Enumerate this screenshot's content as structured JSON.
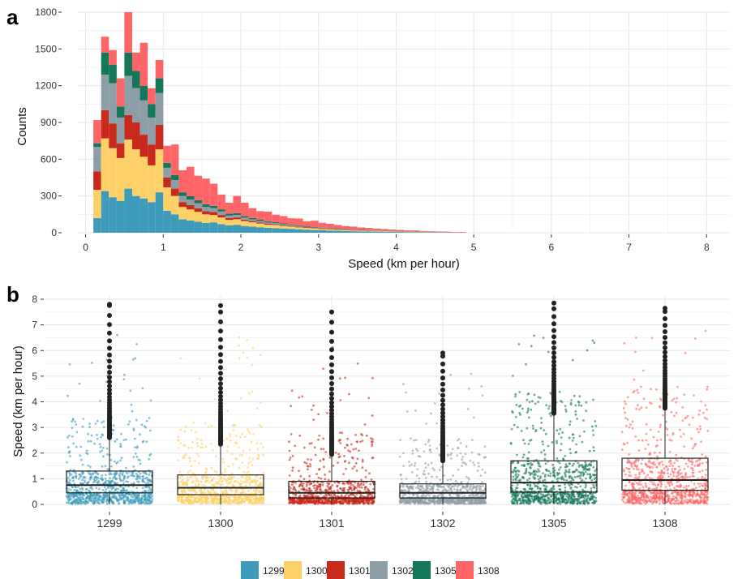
{
  "figure": {
    "panels": [
      "a",
      "b"
    ]
  },
  "colors": {
    "1299": "#3E9BBA",
    "1300": "#FDD168",
    "1301": "#C7291A",
    "1302": "#8D9EA6",
    "1305": "#14775A",
    "1308": "#FD6566"
  },
  "legend": {
    "entries": [
      "1299",
      "1300",
      "1301",
      "1302",
      "1305",
      "1308"
    ]
  },
  "chart_data": [
    {
      "panel": "a",
      "type": "bar",
      "stacked": true,
      "xlabel": "Speed (km per hour)",
      "ylabel": "Counts",
      "xlim": [
        -0.1,
        8.3
      ],
      "ylim": [
        0,
        1800
      ],
      "x_ticks": [
        "0",
        "1",
        "2",
        "3",
        "4",
        "5",
        "6",
        "7",
        "8"
      ],
      "y_ticks": [
        "0",
        "300",
        "600",
        "900",
        "1200",
        "1500",
        "1800"
      ],
      "bin_width": 0.1,
      "bin_starts": [
        0.1,
        0.2,
        0.3,
        0.4,
        0.5,
        0.6,
        0.7,
        0.8,
        0.9,
        1.0,
        1.1,
        1.2,
        1.3,
        1.4,
        1.5,
        1.6,
        1.7,
        1.8,
        1.9,
        2.0,
        2.1,
        2.2,
        2.3,
        2.4,
        2.5,
        2.6,
        2.7,
        2.8,
        2.9,
        3.0,
        3.1,
        3.2,
        3.3,
        3.4,
        3.5,
        3.6,
        3.7,
        3.8,
        3.9,
        4.0,
        4.1,
        4.2,
        4.3,
        4.4,
        4.5,
        4.6,
        4.7,
        4.8
      ],
      "series": [
        {
          "name": "1299",
          "values": [
            120,
            340,
            290,
            260,
            360,
            300,
            280,
            250,
            330,
            180,
            150,
            110,
            100,
            90,
            80,
            85,
            70,
            60,
            65,
            55,
            50,
            45,
            40,
            38,
            35,
            32,
            28,
            25,
            22,
            20,
            18,
            16,
            14,
            12,
            11,
            10,
            9,
            8,
            7,
            6,
            5,
            5,
            4,
            4,
            3,
            3,
            2,
            2
          ]
        },
        {
          "name": "1300",
          "values": [
            230,
            430,
            400,
            350,
            400,
            380,
            340,
            300,
            350,
            190,
            150,
            100,
            90,
            80,
            70,
            60,
            55,
            45,
            45,
            40,
            35,
            30,
            25,
            25,
            20,
            18,
            16,
            14,
            12,
            10,
            9,
            8,
            7,
            6,
            5,
            5,
            4,
            4,
            3,
            3,
            2,
            2,
            2,
            2,
            1,
            1,
            1,
            1
          ]
        },
        {
          "name": "1301",
          "values": [
            150,
            230,
            200,
            120,
            200,
            220,
            180,
            170,
            200,
            80,
            60,
            40,
            35,
            30,
            25,
            25,
            20,
            15,
            15,
            12,
            10,
            9,
            8,
            7,
            6,
            5,
            5,
            4,
            4,
            3,
            3,
            2,
            2,
            2,
            2,
            1,
            1,
            1,
            1,
            1,
            1,
            1,
            0,
            0,
            0,
            0,
            0,
            0
          ]
        },
        {
          "name": "1302",
          "values": [
            200,
            290,
            330,
            210,
            320,
            280,
            280,
            220,
            260,
            80,
            70,
            50,
            45,
            40,
            35,
            30,
            28,
            20,
            20,
            16,
            14,
            12,
            10,
            9,
            8,
            7,
            6,
            5,
            5,
            4,
            4,
            3,
            3,
            2,
            2,
            2,
            2,
            1,
            1,
            1,
            1,
            1,
            1,
            0,
            0,
            0,
            0,
            0
          ]
        },
        {
          "name": "1305",
          "values": [
            30,
            180,
            150,
            90,
            190,
            140,
            120,
            110,
            120,
            40,
            40,
            30,
            28,
            25,
            22,
            20,
            18,
            15,
            15,
            12,
            11,
            10,
            9,
            8,
            7,
            6,
            6,
            5,
            5,
            4,
            4,
            4,
            3,
            3,
            3,
            3,
            2,
            2,
            2,
            2,
            2,
            2,
            1,
            1,
            1,
            1,
            1,
            1
          ]
        },
        {
          "name": "1308",
          "values": [
            190,
            130,
            120,
            230,
            330,
            150,
            350,
            130,
            150,
            140,
            250,
            180,
            240,
            200,
            210,
            180,
            120,
            90,
            140,
            110,
            80,
            70,
            80,
            60,
            60,
            50,
            55,
            40,
            50,
            40,
            35,
            30,
            25,
            25,
            20,
            18,
            16,
            14,
            12,
            10,
            8,
            8,
            6,
            5,
            5,
            4,
            3,
            3
          ]
        }
      ]
    },
    {
      "panel": "b",
      "type": "box",
      "xlabel": "",
      "ylabel": "Speed (km per hour)",
      "ylim": [
        0,
        8
      ],
      "y_ticks": [
        "0",
        "1",
        "2",
        "3",
        "4",
        "5",
        "6",
        "7",
        "8"
      ],
      "categories": [
        "1299",
        "1300",
        "1301",
        "1302",
        "1305",
        "1308"
      ],
      "boxes": [
        {
          "name": "1299",
          "q1": 0.45,
          "median": 0.75,
          "q3": 1.3,
          "whisker_low": 0.0,
          "whisker_high": 2.55,
          "outlier_max": 7.8
        },
        {
          "name": "1300",
          "q1": 0.38,
          "median": 0.65,
          "q3": 1.15,
          "whisker_low": 0.0,
          "whisker_high": 2.3,
          "outlier_max": 7.75
        },
        {
          "name": "1301",
          "q1": 0.25,
          "median": 0.45,
          "q3": 0.9,
          "whisker_low": 0.0,
          "whisker_high": 1.9,
          "outlier_max": 7.5
        },
        {
          "name": "1302",
          "q1": 0.25,
          "median": 0.45,
          "q3": 0.8,
          "whisker_low": 0.0,
          "whisker_high": 1.65,
          "outlier_max": 5.9
        },
        {
          "name": "1305",
          "q1": 0.48,
          "median": 0.85,
          "q3": 1.7,
          "whisker_low": 0.0,
          "whisker_high": 3.5,
          "outlier_max": 7.85
        },
        {
          "name": "1308",
          "q1": 0.55,
          "median": 0.95,
          "q3": 1.8,
          "whisker_low": 0.0,
          "whisker_high": 3.7,
          "outlier_max": 7.65
        }
      ]
    }
  ]
}
